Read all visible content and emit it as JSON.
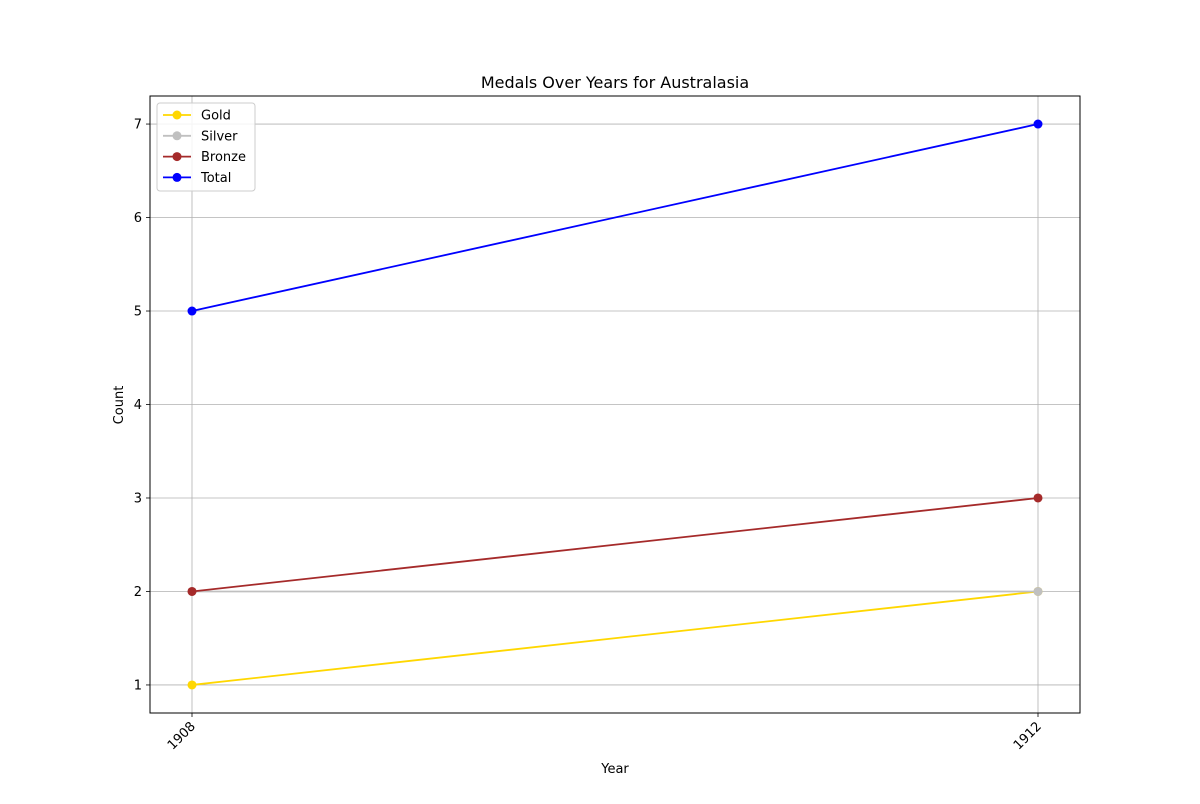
{
  "chart_data": {
    "type": "line",
    "title": "Medals Over Years for Australasia",
    "xlabel": "Year",
    "ylabel": "Count",
    "x": [
      1908,
      1912
    ],
    "x_tick_labels": [
      "1908",
      "1912"
    ],
    "yticks": [
      1,
      2,
      3,
      4,
      5,
      6,
      7
    ],
    "ylim": [
      0.7,
      7.3
    ],
    "grid": true,
    "legend_position": "upper-left",
    "series": [
      {
        "name": "Gold",
        "values": [
          1,
          2
        ],
        "color": "#ffd700",
        "marker": "circle"
      },
      {
        "name": "Silver",
        "values": [
          2,
          2
        ],
        "color": "#c0c0c0",
        "marker": "circle"
      },
      {
        "name": "Bronze",
        "values": [
          2,
          3
        ],
        "color": "#a52a2a",
        "marker": "circle"
      },
      {
        "name": "Total",
        "values": [
          5,
          7
        ],
        "color": "#0000ff",
        "marker": "circle"
      }
    ]
  }
}
